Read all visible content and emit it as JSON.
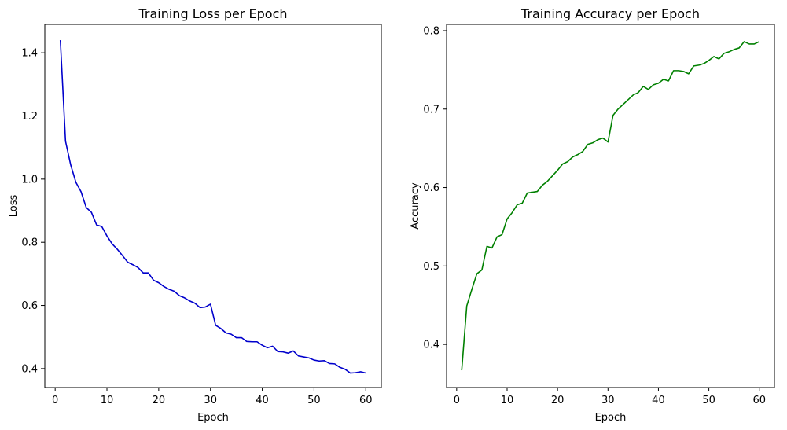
{
  "chart_data": [
    {
      "type": "line",
      "title": "Training Loss per Epoch",
      "xlabel": "Epoch",
      "ylabel": "Loss",
      "xlim": [
        -2,
        63
      ],
      "ylim": [
        0.34,
        1.49
      ],
      "xticks": [
        0,
        10,
        20,
        30,
        40,
        50,
        60
      ],
      "yticks": [
        0.4,
        0.6,
        0.8,
        1.0,
        1.2,
        1.4
      ],
      "ytick_labels": [
        "0.4",
        "0.6",
        "0.8",
        "1.0",
        "1.2",
        "1.4"
      ],
      "grid": false,
      "series": [
        {
          "color": "#0000cc",
          "x": [
            1,
            2,
            3,
            4,
            5,
            6,
            7,
            8,
            9,
            10,
            11,
            12,
            13,
            14,
            15,
            16,
            17,
            18,
            19,
            20,
            21,
            22,
            23,
            24,
            25,
            26,
            27,
            28,
            29,
            30,
            31,
            32,
            33,
            34,
            35,
            36,
            37,
            38,
            39,
            40,
            41,
            42,
            43,
            44,
            45,
            46,
            47,
            48,
            49,
            50,
            51,
            52,
            53,
            54,
            55,
            56,
            57,
            58,
            59,
            60
          ],
          "y": [
            1.44,
            1.12,
            1.045,
            0.99,
            0.96,
            0.91,
            0.895,
            0.855,
            0.85,
            0.82,
            0.795,
            0.778,
            0.758,
            0.737,
            0.729,
            0.72,
            0.703,
            0.703,
            0.68,
            0.672,
            0.66,
            0.651,
            0.645,
            0.631,
            0.624,
            0.614,
            0.607,
            0.593,
            0.595,
            0.604,
            0.537,
            0.527,
            0.513,
            0.509,
            0.498,
            0.498,
            0.486,
            0.485,
            0.485,
            0.474,
            0.466,
            0.471,
            0.454,
            0.453,
            0.449,
            0.456,
            0.44,
            0.437,
            0.434,
            0.427,
            0.424,
            0.425,
            0.416,
            0.415,
            0.404,
            0.398,
            0.386,
            0.387,
            0.39,
            0.386
          ]
        }
      ]
    },
    {
      "type": "line",
      "title": "Training Accuracy per Epoch",
      "xlabel": "Epoch",
      "ylabel": "Accuracy",
      "xlim": [
        -2,
        63
      ],
      "ylim": [
        0.345,
        0.808
      ],
      "xticks": [
        0,
        10,
        20,
        30,
        40,
        50,
        60
      ],
      "yticks": [
        0.4,
        0.5,
        0.6,
        0.7,
        0.8
      ],
      "ytick_labels": [
        "0.4",
        "0.5",
        "0.6",
        "0.7",
        "0.8"
      ],
      "grid": false,
      "series": [
        {
          "color": "#008000",
          "x": [
            1,
            2,
            3,
            4,
            5,
            6,
            7,
            8,
            9,
            10,
            11,
            12,
            13,
            14,
            15,
            16,
            17,
            18,
            19,
            20,
            21,
            22,
            23,
            24,
            25,
            26,
            27,
            28,
            29,
            30,
            31,
            32,
            33,
            34,
            35,
            36,
            37,
            38,
            39,
            40,
            41,
            42,
            43,
            44,
            45,
            46,
            47,
            48,
            49,
            50,
            51,
            52,
            53,
            54,
            55,
            56,
            57,
            58,
            59,
            60
          ],
          "y": [
            0.367,
            0.449,
            0.47,
            0.49,
            0.495,
            0.525,
            0.523,
            0.537,
            0.54,
            0.56,
            0.568,
            0.578,
            0.58,
            0.593,
            0.594,
            0.595,
            0.603,
            0.608,
            0.615,
            0.622,
            0.63,
            0.633,
            0.639,
            0.642,
            0.646,
            0.655,
            0.657,
            0.661,
            0.663,
            0.658,
            0.692,
            0.7,
            0.706,
            0.712,
            0.718,
            0.721,
            0.729,
            0.725,
            0.731,
            0.733,
            0.738,
            0.736,
            0.749,
            0.749,
            0.748,
            0.745,
            0.755,
            0.756,
            0.758,
            0.762,
            0.767,
            0.764,
            0.771,
            0.773,
            0.776,
            0.778,
            0.786,
            0.783,
            0.783,
            0.786
          ]
        }
      ]
    }
  ]
}
